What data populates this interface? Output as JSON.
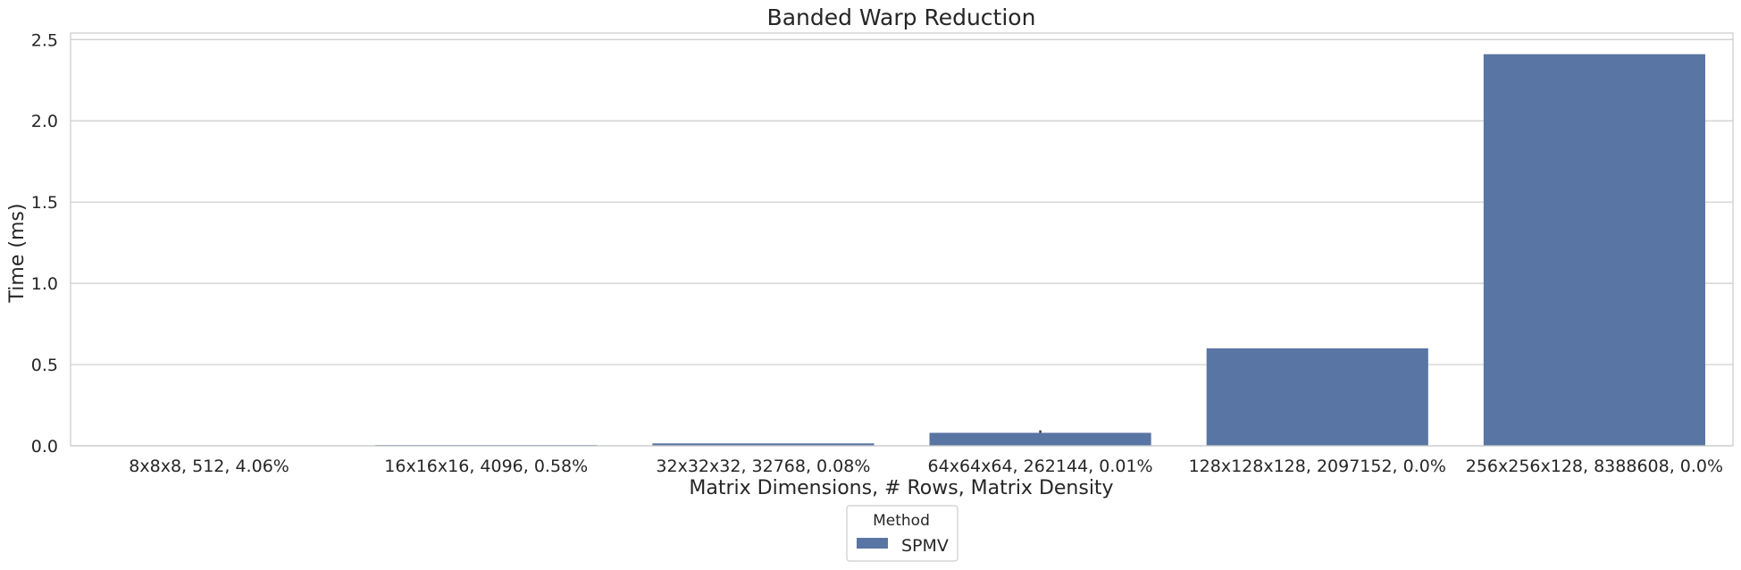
{
  "chart_data": {
    "type": "bar",
    "title": "Banded Warp Reduction",
    "xlabel": "Matrix Dimensions, # Rows, Matrix Density",
    "ylabel": "Time (ms)",
    "categories": [
      "8x8x8, 512, 4.06%",
      "16x16x16, 4096, 0.58%",
      "32x32x32, 32768, 0.08%",
      "64x64x64, 262144, 0.01%",
      "128x128x128, 2097152, 0.0%",
      "256x256x128, 8388608, 0.0%"
    ],
    "series": [
      {
        "name": "SPMV",
        "color": "#5975a4",
        "values": [
          0.003,
          0.005,
          0.015,
          0.08,
          0.6,
          2.41
        ],
        "error_high": [
          null,
          null,
          null,
          0.095,
          null,
          null
        ]
      }
    ],
    "ylim": [
      0,
      2.54
    ],
    "yticks": [
      "0.0",
      "0.5",
      "1.0",
      "1.5",
      "2.0",
      "2.5"
    ],
    "ytick_values": [
      0,
      0.5,
      1.0,
      1.5,
      2.0,
      2.5
    ],
    "grid": true,
    "legend": {
      "title": "Method",
      "placement": "bottom-center"
    }
  }
}
